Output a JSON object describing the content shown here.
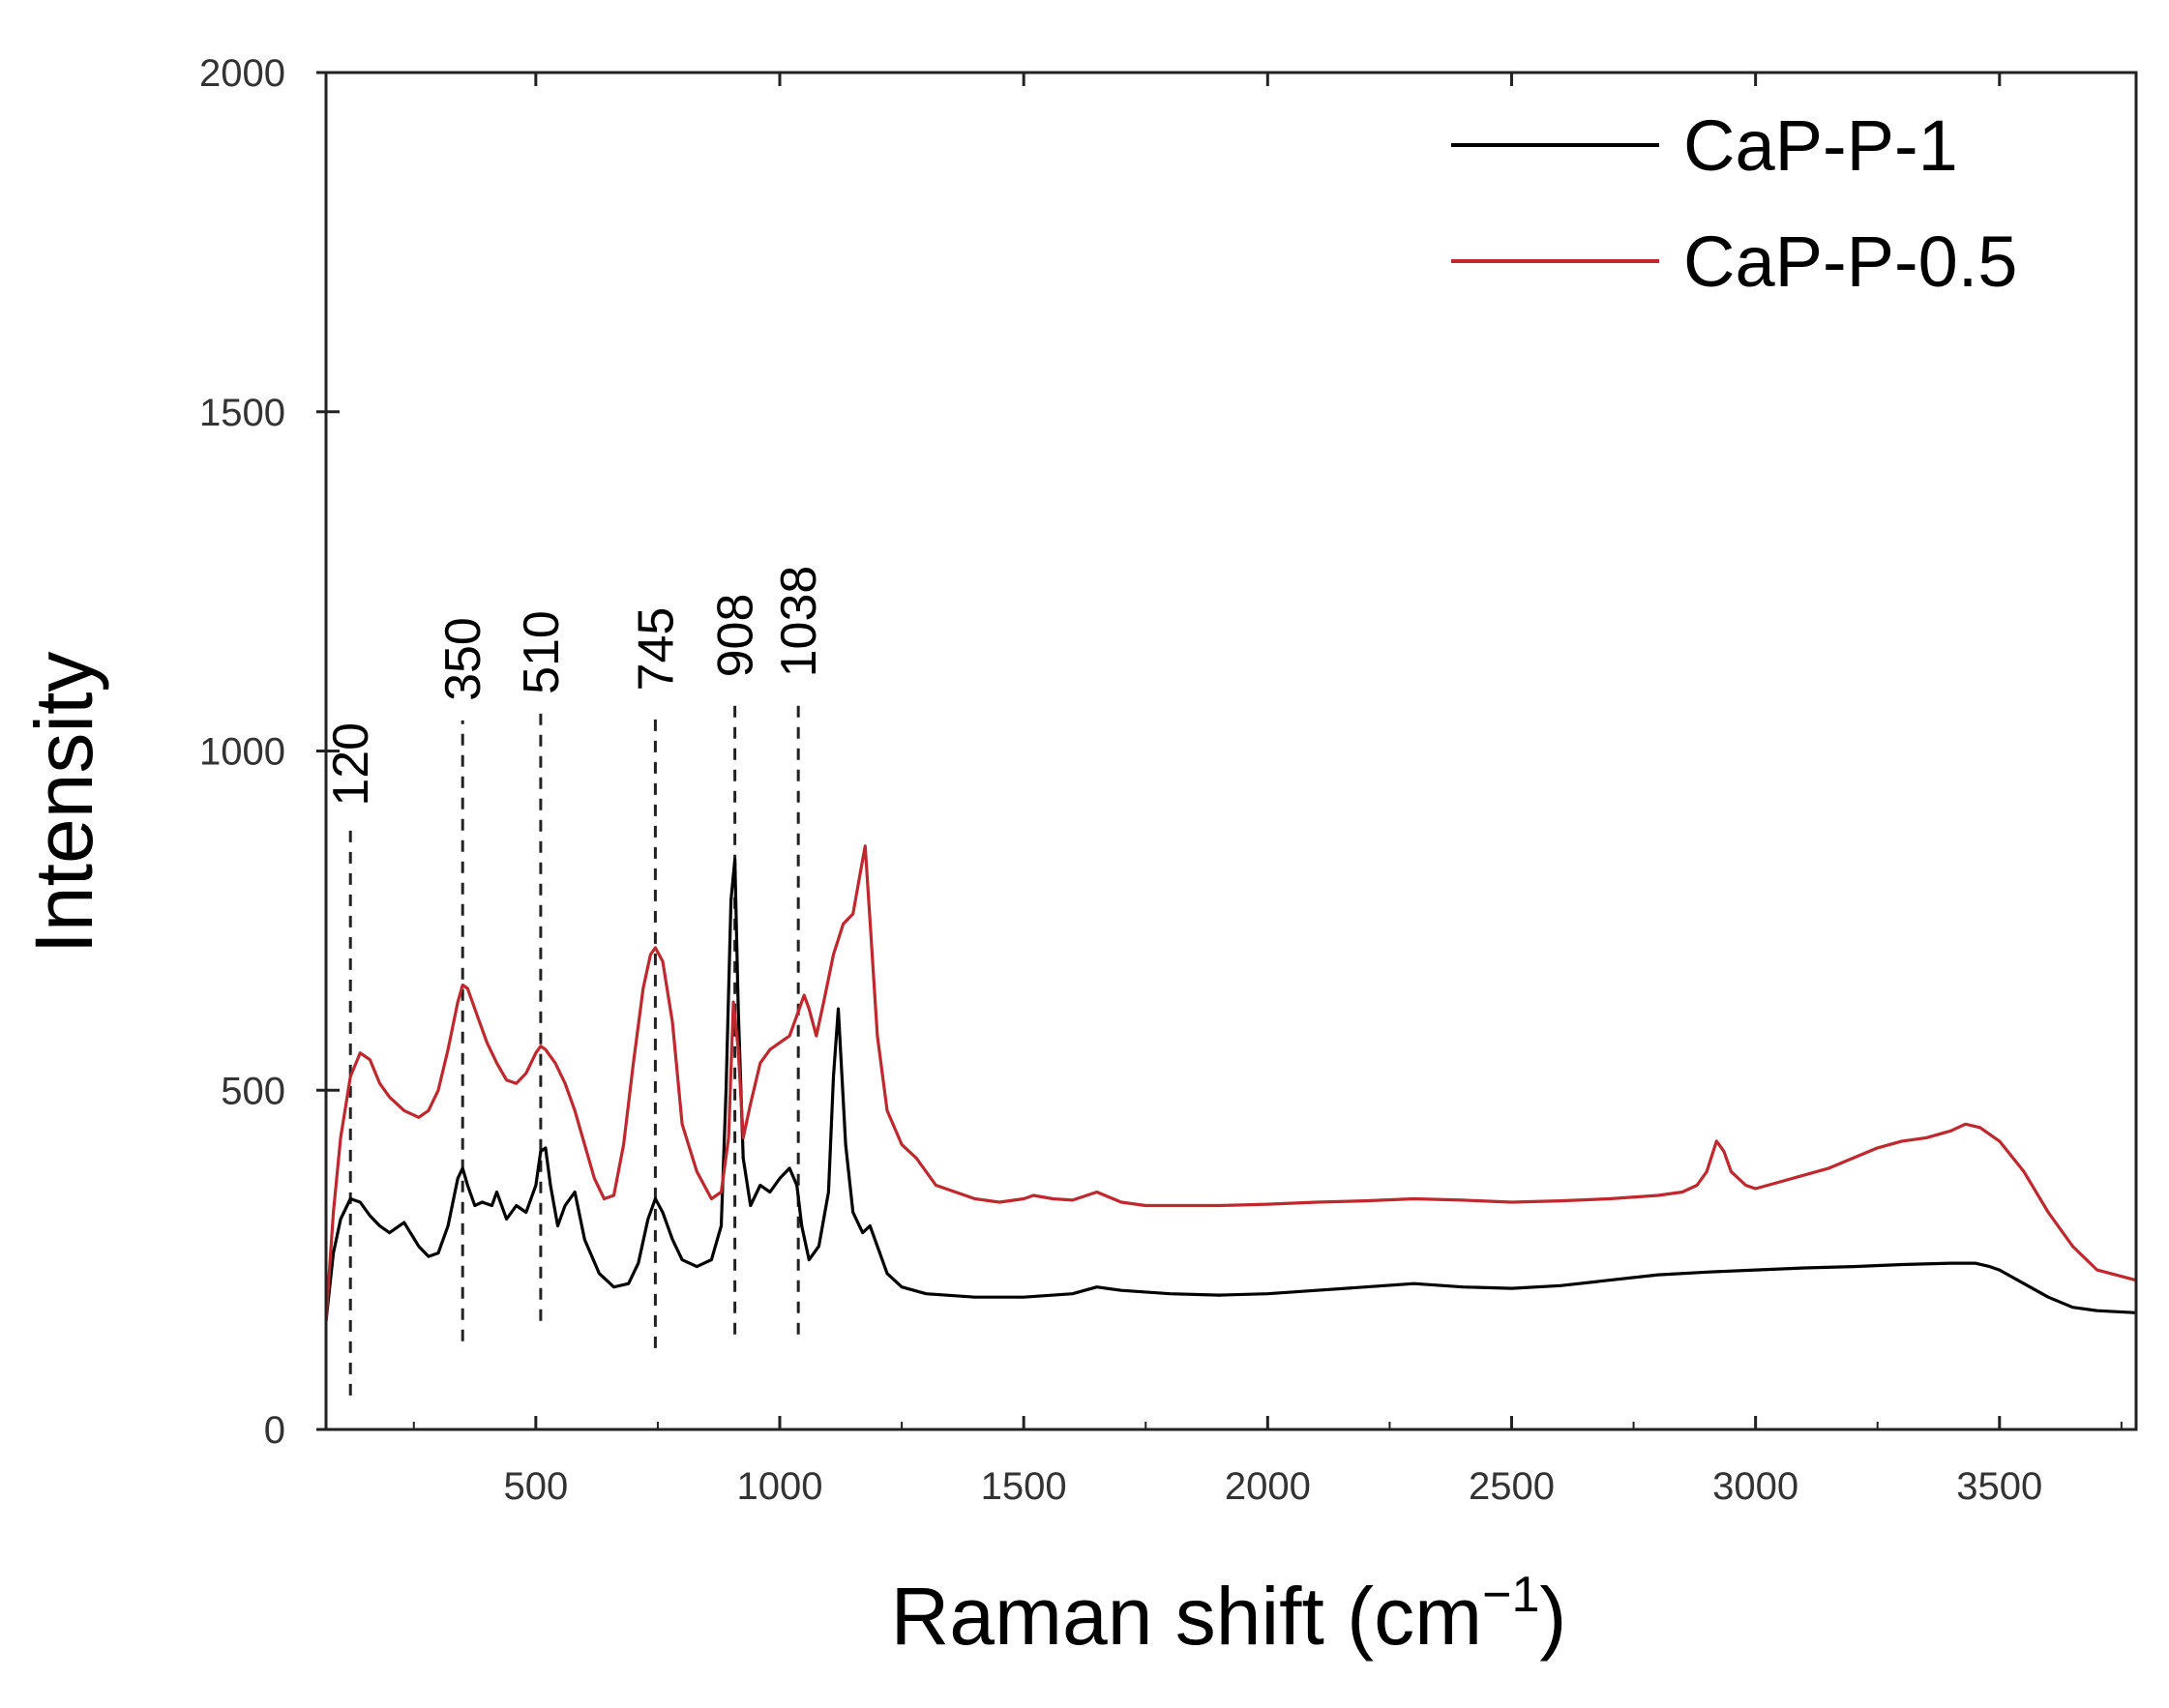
{
  "chart_data": {
    "type": "line",
    "title": "",
    "xlabel": "Raman shift (cm",
    "xlabel_sup": "−1",
    "xlabel_end": ")",
    "ylabel": "Intensity",
    "xlim": [
      70,
      3780
    ],
    "ylim": [
      0,
      2000
    ],
    "x_ticks": [
      500,
      1000,
      1500,
      2000,
      2500,
      3000,
      3500
    ],
    "x_tick_labels": [
      "500",
      "1000",
      "1500",
      "2000",
      "2500",
      "3000",
      "3500"
    ],
    "y_ticks": [
      0,
      500,
      1000,
      1500,
      2000
    ],
    "y_tick_labels": [
      "0",
      "500",
      "1000",
      "1500",
      "2000"
    ],
    "legend_position": "top-right",
    "series": [
      {
        "name": "CaP-P-1",
        "color": "#000000",
        "x": [
          70,
          85,
          100,
          120,
          140,
          160,
          180,
          200,
          230,
          260,
          280,
          300,
          320,
          340,
          350,
          360,
          375,
          390,
          410,
          420,
          440,
          460,
          480,
          500,
          510,
          520,
          530,
          545,
          560,
          580,
          600,
          630,
          660,
          690,
          710,
          730,
          745,
          760,
          780,
          800,
          830,
          860,
          880,
          890,
          900,
          908,
          915,
          925,
          940,
          960,
          980,
          1000,
          1020,
          1035,
          1045,
          1060,
          1080,
          1100,
          1110,
          1120,
          1135,
          1150,
          1170,
          1185,
          1200,
          1220,
          1250,
          1300,
          1400,
          1500,
          1600,
          1650,
          1700,
          1800,
          1900,
          2000,
          2100,
          2200,
          2300,
          2400,
          2500,
          2600,
          2700,
          2800,
          2900,
          3000,
          3100,
          3200,
          3300,
          3400,
          3450,
          3480,
          3500,
          3550,
          3600,
          3650,
          3700,
          3780
        ],
        "values": [
          160,
          260,
          310,
          340,
          335,
          315,
          300,
          290,
          305,
          270,
          255,
          260,
          300,
          370,
          385,
          360,
          330,
          335,
          330,
          350,
          310,
          330,
          320,
          360,
          410,
          415,
          360,
          300,
          330,
          350,
          280,
          230,
          210,
          215,
          245,
          310,
          340,
          320,
          280,
          250,
          240,
          250,
          300,
          500,
          780,
          840,
          620,
          400,
          330,
          360,
          350,
          370,
          385,
          360,
          300,
          250,
          270,
          350,
          520,
          620,
          420,
          320,
          290,
          300,
          270,
          230,
          210,
          200,
          195,
          195,
          200,
          210,
          205,
          200,
          198,
          200,
          205,
          210,
          215,
          210,
          208,
          212,
          220,
          228,
          232,
          235,
          238,
          240,
          243,
          245,
          245,
          240,
          235,
          215,
          195,
          180,
          175,
          172
        ]
      },
      {
        "name": "CaP-P-0.5",
        "color": "#c0282d",
        "x": [
          70,
          85,
          100,
          120,
          140,
          160,
          180,
          200,
          230,
          260,
          280,
          300,
          320,
          340,
          350,
          360,
          380,
          400,
          420,
          440,
          460,
          480,
          500,
          510,
          520,
          540,
          560,
          580,
          600,
          620,
          640,
          660,
          680,
          700,
          720,
          735,
          745,
          760,
          780,
          800,
          830,
          860,
          880,
          895,
          905,
          915,
          925,
          940,
          960,
          980,
          1000,
          1020,
          1040,
          1050,
          1060,
          1075,
          1090,
          1110,
          1130,
          1150,
          1165,
          1175,
          1185,
          1200,
          1220,
          1250,
          1280,
          1320,
          1400,
          1450,
          1500,
          1520,
          1560,
          1600,
          1650,
          1700,
          1750,
          1800,
          1900,
          2000,
          2100,
          2200,
          2300,
          2400,
          2500,
          2600,
          2700,
          2800,
          2850,
          2880,
          2900,
          2920,
          2935,
          2950,
          2980,
          3000,
          3050,
          3100,
          3150,
          3200,
          3250,
          3300,
          3350,
          3400,
          3430,
          3460,
          3500,
          3550,
          3600,
          3650,
          3700,
          3780
        ],
        "values": [
          160,
          320,
          430,
          520,
          555,
          545,
          510,
          490,
          470,
          460,
          470,
          500,
          560,
          630,
          655,
          650,
          610,
          570,
          540,
          515,
          510,
          525,
          555,
          565,
          560,
          540,
          510,
          470,
          420,
          370,
          340,
          345,
          420,
          540,
          650,
          700,
          710,
          690,
          600,
          450,
          380,
          340,
          350,
          430,
          630,
          560,
          430,
          480,
          540,
          560,
          570,
          580,
          620,
          640,
          620,
          580,
          630,
          700,
          745,
          760,
          820,
          860,
          750,
          580,
          470,
          420,
          400,
          360,
          340,
          335,
          340,
          345,
          340,
          338,
          350,
          335,
          330,
          330,
          330,
          332,
          335,
          337,
          340,
          338,
          335,
          337,
          340,
          345,
          350,
          360,
          380,
          425,
          410,
          380,
          360,
          355,
          365,
          375,
          385,
          400,
          415,
          425,
          430,
          440,
          450,
          445,
          425,
          380,
          320,
          270,
          235,
          220
        ]
      }
    ],
    "peak_markers": [
      {
        "x": 120,
        "label": "120",
        "y_bottom": 50,
        "y_top": 890
      },
      {
        "x": 350,
        "label": "350",
        "y_bottom": 130,
        "y_top": 1045
      },
      {
        "x": 510,
        "label": "510",
        "y_bottom": 160,
        "y_top": 1055
      },
      {
        "x": 745,
        "label": "745",
        "y_bottom": 120,
        "y_top": 1060
      },
      {
        "x": 908,
        "label": "908",
        "y_bottom": 140,
        "y_top": 1080
      },
      {
        "x": 1038,
        "label": "1038",
        "y_bottom": 140,
        "y_top": 1080
      }
    ]
  }
}
